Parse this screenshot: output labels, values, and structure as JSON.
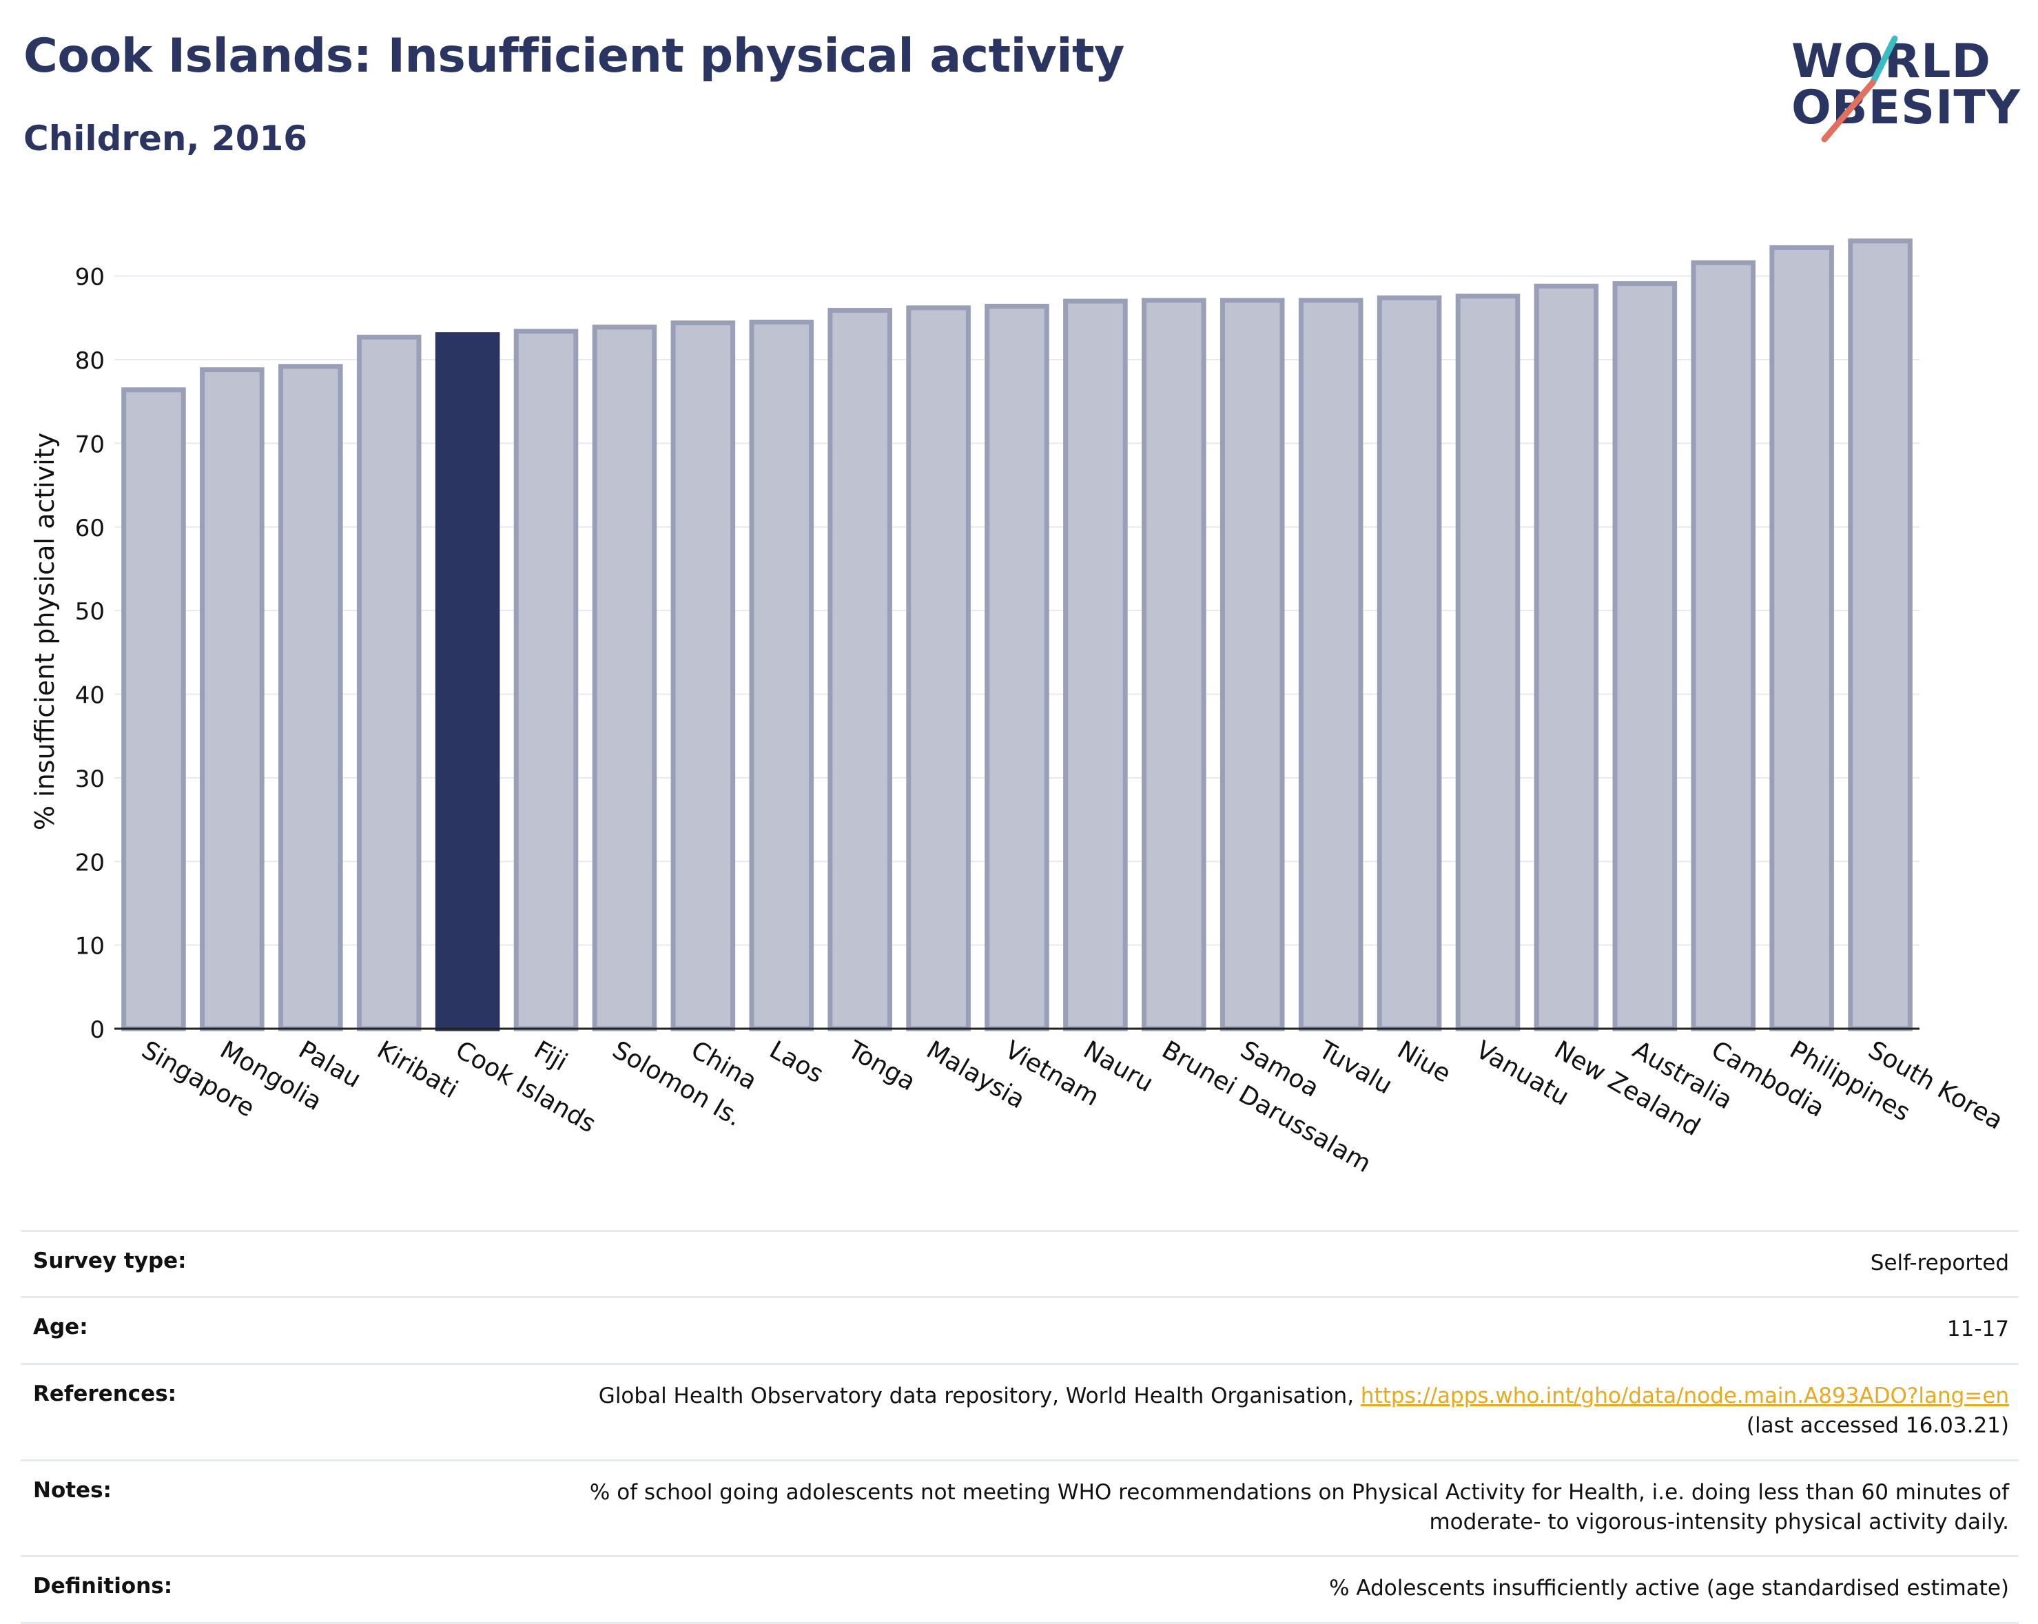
{
  "header": {
    "title": "Cook Islands: Insufficient physical activity",
    "subtitle": "Children, 2016"
  },
  "logo": {
    "line1": "WORLD",
    "line2": "OBESITY",
    "accent_teal": "#3bbcc0",
    "accent_red": "#e2705f"
  },
  "colors": {
    "bar_fill": "#bfc2d0",
    "bar_stroke": "#9a9fb8",
    "highlight": "#2b3561",
    "text_dark": "#2b3561",
    "grid": "#e6e9f0"
  },
  "chart_data": {
    "type": "bar",
    "ylabel": "% insufficient physical activity",
    "ylim": [
      0,
      95
    ],
    "yticks": [
      0,
      10,
      20,
      30,
      40,
      50,
      60,
      70,
      80,
      90
    ],
    "grid": true,
    "highlight": "Cook Islands",
    "categories": [
      "Singapore",
      "Mongolia",
      "Palau",
      "Kiribati",
      "Cook Islands",
      "Fiji",
      "Solomon Is.",
      "China",
      "Laos",
      "Tonga",
      "Malaysia",
      "Vietnam",
      "Nauru",
      "Brunei Darussalam",
      "Samoa",
      "Tuvalu",
      "Niue",
      "Vanuatu",
      "New Zealand",
      "Australia",
      "Cambodia",
      "Philippines",
      "South Korea"
    ],
    "values": [
      76.4,
      78.8,
      79.2,
      82.7,
      83.0,
      83.4,
      83.9,
      84.4,
      84.5,
      85.9,
      86.2,
      86.4,
      87.0,
      87.1,
      87.1,
      87.1,
      87.4,
      87.6,
      88.8,
      89.1,
      91.6,
      93.4,
      94.2
    ]
  },
  "details": {
    "survey_type": {
      "label": "Survey type:",
      "value": "Self-reported"
    },
    "age": {
      "label": "Age:",
      "value": "11-17"
    },
    "references": {
      "label": "References:",
      "text": "Global Health Observatory data repository, World Health Organisation, ",
      "link": "https://apps.who.int/gho/data/node.main.A893ADO?lang=en",
      "suffix": "(last accessed 16.03.21)"
    },
    "notes": {
      "label": "Notes:",
      "line1": "% of school going adolescents not meeting WHO recommendations on Physical Activity for Health, i.e. doing less than 60 minutes of",
      "line2": "moderate- to vigorous-intensity physical activity daily."
    },
    "definitions": {
      "label": "Definitions:",
      "value": "% Adolescents insufficiently active (age standardised estimate)"
    }
  }
}
